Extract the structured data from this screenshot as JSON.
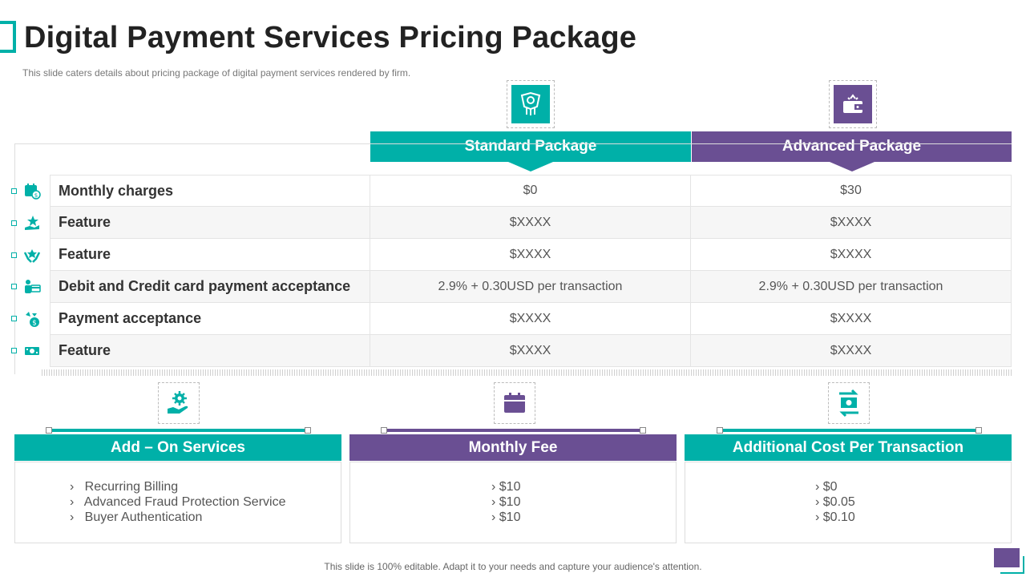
{
  "title": "Digital Payment Services Pricing Package",
  "subtitle": "This slide caters details about pricing package of digital payment services rendered by firm.",
  "colors": {
    "teal": "#00b0a8",
    "purple": "#6a4f93"
  },
  "packages": [
    {
      "label": "Standard Package",
      "icon": "money-hand-icon"
    },
    {
      "label": "Advanced Package",
      "icon": "wallet-icon"
    }
  ],
  "table": {
    "rows": [
      {
        "label": "Monthly charges",
        "standard": "$0",
        "advanced": "$30",
        "icon": "calendar-dollar-icon"
      },
      {
        "label": "Feature",
        "standard": "$XXXX",
        "advanced": "$XXXX",
        "icon": "hand-star-icon"
      },
      {
        "label": "Feature",
        "standard": "$XXXX",
        "advanced": "$XXXX",
        "icon": "hands-star-icon"
      },
      {
        "label": "Debit and Credit card payment acceptance",
        "standard": "2.9% + 0.30USD per transaction",
        "advanced": "2.9% + 0.30USD per transaction",
        "icon": "card-person-icon"
      },
      {
        "label": "Payment acceptance",
        "standard": "$XXXX",
        "advanced": "$XXXX",
        "icon": "money-bag-icon"
      },
      {
        "label": "Feature",
        "standard": "$XXXX",
        "advanced": "$XXXX",
        "icon": "cash-icon"
      }
    ]
  },
  "cards": [
    {
      "title": "Add – On Services",
      "icon": "gear-hand-icon",
      "items": [
        "Recurring Billing",
        "Advanced Fraud Protection Service",
        " Buyer Authentication"
      ]
    },
    {
      "title": "Monthly Fee",
      "icon": "calendar-icon",
      "items": [
        "$10",
        "$10",
        "$10"
      ]
    },
    {
      "title": "Additional Cost Per Transaction",
      "icon": "cash-exchange-icon",
      "items": [
        "$0",
        "$0.05",
        "$0.10"
      ]
    }
  ],
  "footer": "This slide is 100% editable. Adapt it to your needs and capture your audience's attention."
}
